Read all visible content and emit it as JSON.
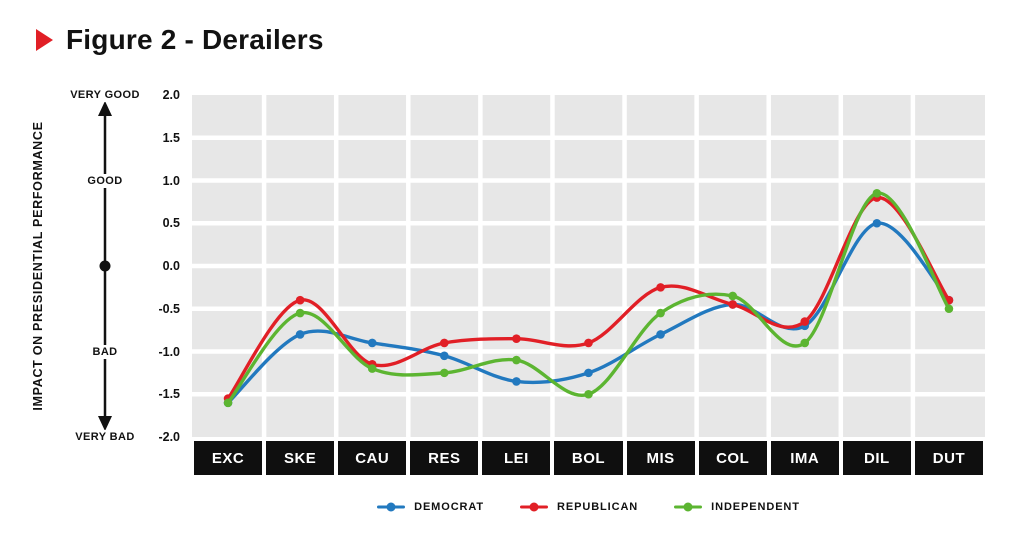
{
  "title": "Figure 2 - Derailers",
  "colors": {
    "title_bullet": "#e11f26",
    "text": "#111111",
    "plot_bg": "#e7e7e7",
    "grid": "#ffffff",
    "label_box_bg": "#0f0f0f",
    "label_box_text": "#ffffff",
    "democrat": "#2279bf",
    "republican": "#e11f26",
    "independent": "#5cb531"
  },
  "y_axis": {
    "title": "IMPACT ON PRESIDENTIAL PERFORMANCE",
    "qualitative_labels": [
      {
        "label": "VERY GOOD",
        "value": 2.0
      },
      {
        "label": "GOOD",
        "value": 1.0
      },
      {
        "label": "BAD",
        "value": -1.0
      },
      {
        "label": "VERY BAD",
        "value": -2.0
      }
    ]
  },
  "chart_data": {
    "type": "line",
    "title": "Figure 2 - Derailers",
    "xlabel": "",
    "ylabel": "IMPACT ON PRESIDENTIAL PERFORMANCE",
    "categories": [
      "EXC",
      "SKE",
      "CAU",
      "RES",
      "LEI",
      "BOL",
      "MIS",
      "COL",
      "IMA",
      "DIL",
      "DUT"
    ],
    "series": [
      {
        "name": "DEMOCRAT",
        "color": "#2279bf",
        "values": [
          -1.6,
          -0.8,
          -0.9,
          -1.05,
          -1.35,
          -1.25,
          -0.8,
          -0.45,
          -0.7,
          0.5,
          -0.4
        ]
      },
      {
        "name": "REPUBLICAN",
        "color": "#e11f26",
        "values": [
          -1.55,
          -0.4,
          -1.15,
          -0.9,
          -0.85,
          -0.9,
          -0.25,
          -0.45,
          -0.65,
          0.8,
          -0.4
        ]
      },
      {
        "name": "INDEPENDENT",
        "color": "#5cb531",
        "values": [
          -1.6,
          -0.55,
          -1.2,
          -1.25,
          -1.1,
          -1.5,
          -0.55,
          -0.35,
          -0.9,
          0.85,
          -0.5
        ]
      }
    ],
    "ylim": [
      -2.0,
      2.0
    ],
    "yticks": [
      2.0,
      1.5,
      1.0,
      0.5,
      0.0,
      -0.5,
      -1.0,
      -1.5,
      -2.0
    ],
    "grid": true,
    "legend_position": "bottom"
  }
}
